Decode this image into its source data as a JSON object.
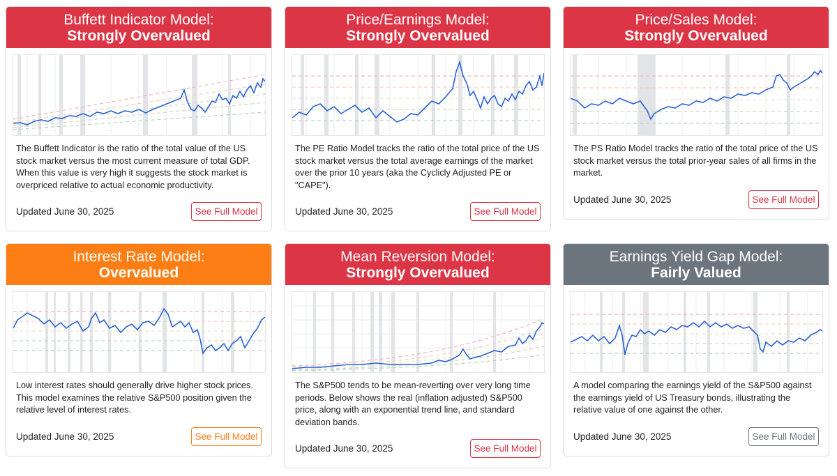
{
  "colors": {
    "red": "#dc3545",
    "orange": "#fd7e14",
    "gray": "#6c757d",
    "line": "#2962d9"
  },
  "cards": [
    {
      "title": "Buffett Indicator Model:",
      "status": "Strongly Overvalued",
      "color": "#dc3545",
      "description": "The Buffett Indicator is the ratio of the total value of the US stock market versus the most current measure of total GDP. When this value is very high it suggests the stock market is overpriced relative to actual economic productivity.",
      "updated": "Updated June 30, 2025",
      "button": "See Full Model"
    },
    {
      "title": "Price/Earnings Model:",
      "status": "Strongly Overvalued",
      "color": "#dc3545",
      "description": "The PE Ratio Model tracks the ratio of the total price of the US stock market versus the total average earnings of the market over the prior 10 years (aka the Cyclicly Adjusted PE or \"CAPE\").",
      "updated": "Updated June 30, 2025",
      "button": "See Full Model"
    },
    {
      "title": "Price/Sales Model:",
      "status": "Strongly Overvalued",
      "color": "#dc3545",
      "description": "The PS Ratio Model tracks the ratio of the total price of the US stock market versus the total prior-year sales of all firms in the market.",
      "updated": "Updated June 30, 2025",
      "button": "See Full Model"
    },
    {
      "title": "Interest Rate Model:",
      "status": "Overvalued",
      "color": "#fd7e14",
      "description": "Low interest rates should generally drive higher stock prices. This model examines the relative S&P500 position given the relative level of interest rates.",
      "updated": "Updated June 30, 2025",
      "button": "See Full Model"
    },
    {
      "title": "Mean Reversion Model:",
      "status": "Strongly Overvalued",
      "color": "#dc3545",
      "description": "The S&P500 tends to be mean-reverting over very long time periods. Below shows the real (inflation adjusted) S&P500 price, along with an exponential trend line, and standard deviation bands.",
      "updated": "Updated June 30, 2025",
      "button": "See Full Model"
    },
    {
      "title": "Earnings Yield Gap Model:",
      "status": "Fairly Valued",
      "color": "#6c757d",
      "description": "A model comparing the earnings yield of the S&P500 against the earnings yield of US Treasury bonds, illustrating the relative value of one against the other.",
      "updated": "Updated June 30, 2025",
      "button": "See Full Model"
    }
  ]
}
